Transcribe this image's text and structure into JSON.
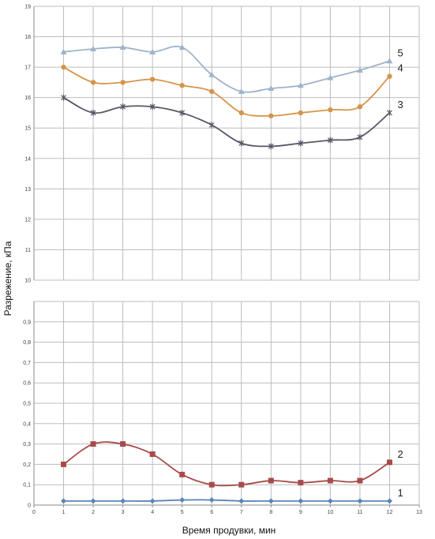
{
  "chart_data": {
    "type": "line",
    "xlabel": "Время продувки, мин",
    "ylabel": "Разрежение, кПа",
    "x_ticks": [
      "0",
      "1",
      "2",
      "3",
      "4",
      "5",
      "6",
      "7",
      "8",
      "9",
      "10",
      "11",
      "12",
      "13"
    ],
    "x": [
      1,
      2,
      3,
      4,
      5,
      6,
      7,
      8,
      9,
      10,
      11,
      12
    ],
    "xlim": [
      0,
      13
    ],
    "grid": true,
    "legend": "none",
    "panels": [
      {
        "id": "top",
        "ylim": [
          10,
          19
        ],
        "y_ticks": [
          "10",
          "11",
          "12",
          "13",
          "14",
          "15",
          "16",
          "17",
          "18",
          "19"
        ],
        "series": [
          {
            "name": "5",
            "color": "#9fb3c9",
            "marker": "triangle",
            "values": [
              17.5,
              17.6,
              17.65,
              17.5,
              17.65,
              16.75,
              16.2,
              16.3,
              16.4,
              16.65,
              16.9,
              17.2
            ]
          },
          {
            "name": "4",
            "color": "#d4954a",
            "marker": "circle",
            "values": [
              17.0,
              16.5,
              16.5,
              16.6,
              16.4,
              16.2,
              15.5,
              15.4,
              15.5,
              15.6,
              15.7,
              16.7
            ]
          },
          {
            "name": "3",
            "color": "#5a5566",
            "marker": "star",
            "values": [
              16.0,
              15.5,
              15.7,
              15.7,
              15.5,
              15.1,
              14.5,
              14.4,
              14.5,
              14.6,
              14.7,
              15.5
            ]
          }
        ]
      },
      {
        "id": "bottom",
        "ylim": [
          0,
          1
        ],
        "y_ticks": [
          "0",
          "0,1",
          "0,2",
          "0,3",
          "0,4",
          "0,5",
          "0,6",
          "0,7",
          "0,8",
          "0,9",
          ""
        ],
        "series": [
          {
            "name": "2",
            "color": "#a84b4b",
            "marker": "square",
            "values": [
              0.2,
              0.3,
              0.3,
              0.25,
              0.15,
              0.1,
              0.1,
              0.12,
              0.11,
              0.12,
              0.12,
              0.21
            ]
          },
          {
            "name": "1",
            "color": "#5a86b5",
            "marker": "diamond",
            "values": [
              0.02,
              0.02,
              0.02,
              0.02,
              0.025,
              0.025,
              0.02,
              0.02,
              0.02,
              0.02,
              0.02,
              0.02
            ]
          }
        ]
      }
    ]
  }
}
